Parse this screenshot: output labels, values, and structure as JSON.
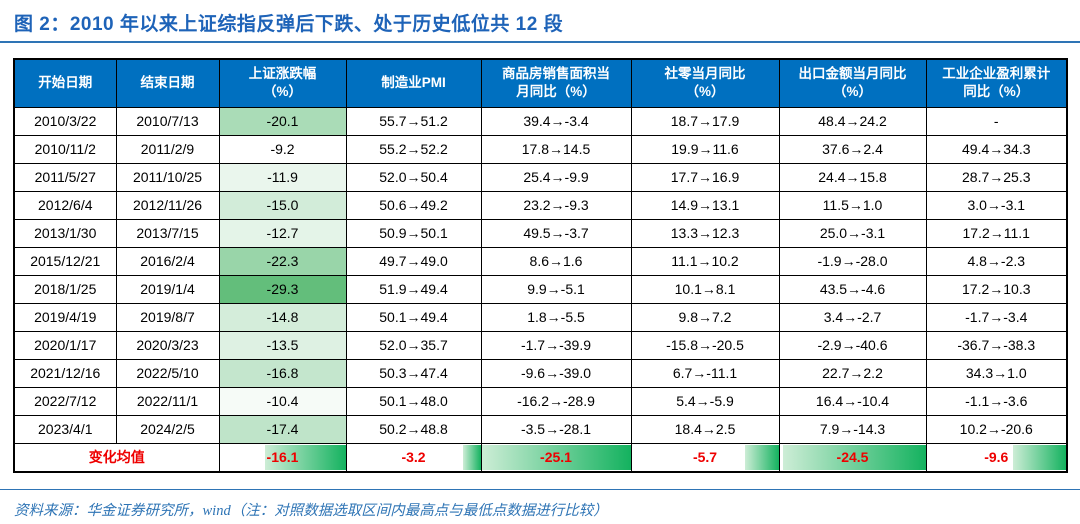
{
  "title": "图 2：2010 年以来上证综指反弹后下跌、处于历史低位共 12 段",
  "source_note": "资料来源：华金证券研究所，wind（注：对照数据选取区间内最高点与最低点数据进行比较）",
  "colors": {
    "header_bg": "#0070C0",
    "header_text": "#FFFFFF",
    "title_text": "#1E63B8",
    "rule_blue": "#2E74B5",
    "scale_green_max": "#63BE7B",
    "scale_white_min": "#FFFFFF",
    "avg_text_red": "#EE0000",
    "bar_gradient_light": "#CDEDD6",
    "bar_gradient_dark": "#14B25F"
  },
  "chart_data": {
    "type": "table",
    "title": "图 2：2010 年以来上证综指反弹后下跌、处于历史低位共 12 段",
    "headers": [
      [
        "开始日期"
      ],
      [
        "结束日期"
      ],
      [
        "上证涨跌幅",
        "（%）"
      ],
      [
        "制造业PMI"
      ],
      [
        "商品房销售面积当",
        "月同比（%）"
      ],
      [
        "社零当月同比",
        "（%）"
      ],
      [
        "出口金额当月同比",
        "（%）"
      ],
      [
        "工业企业盈利累计",
        "同比（%）"
      ]
    ],
    "rows": [
      {
        "start": "2010/3/22",
        "end": "2010/7/13",
        "change": -20.1,
        "pmi": "55.7→51.2",
        "housing": "39.4→-3.4",
        "retail": "18.7→17.9",
        "export": "48.4→24.2",
        "profit": "-"
      },
      {
        "start": "2010/11/2",
        "end": "2011/2/9",
        "change": -9.2,
        "pmi": "55.2→52.2",
        "housing": "17.8→14.5",
        "retail": "19.9→11.6",
        "export": "37.6→2.4",
        "profit": "49.4→34.3"
      },
      {
        "start": "2011/5/27",
        "end": "2011/10/25",
        "change": -11.9,
        "pmi": "52.0→50.4",
        "housing": "25.4→-9.9",
        "retail": "17.7→16.9",
        "export": "24.4→15.8",
        "profit": "28.7→25.3"
      },
      {
        "start": "2012/6/4",
        "end": "2012/11/26",
        "change": -15.0,
        "pmi": "50.6→49.2",
        "housing": "23.2→-9.3",
        "retail": "14.9→13.1",
        "export": "11.5→1.0",
        "profit": "3.0→-3.1"
      },
      {
        "start": "2013/1/30",
        "end": "2013/7/15",
        "change": -12.7,
        "pmi": "50.9→50.1",
        "housing": "49.5→-3.7",
        "retail": "13.3→12.3",
        "export": "25.0→-3.1",
        "profit": "17.2→11.1"
      },
      {
        "start": "2015/12/21",
        "end": "2016/2/4",
        "change": -22.3,
        "pmi": "49.7→49.0",
        "housing": "8.6→1.6",
        "retail": "11.1→10.2",
        "export": "-1.9→-28.0",
        "profit": "4.8→-2.3"
      },
      {
        "start": "2018/1/25",
        "end": "2019/1/4",
        "change": -29.3,
        "pmi": "51.9→49.4",
        "housing": "9.9→-5.1",
        "retail": "10.1→8.1",
        "export": "43.5→-4.6",
        "profit": "17.2→10.3"
      },
      {
        "start": "2019/4/19",
        "end": "2019/8/7",
        "change": -14.8,
        "pmi": "50.1→49.4",
        "housing": "1.8→-5.5",
        "retail": "9.8→7.2",
        "export": "3.4→-2.7",
        "profit": "-1.7→-3.4"
      },
      {
        "start": "2020/1/17",
        "end": "2020/3/23",
        "change": -13.5,
        "pmi": "52.0→35.7",
        "housing": "-1.7→-39.9",
        "retail": "-15.8→-20.5",
        "export": "-2.9→-40.6",
        "profit": "-36.7→-38.3"
      },
      {
        "start": "2021/12/16",
        "end": "2022/5/10",
        "change": -16.8,
        "pmi": "50.3→47.4",
        "housing": "-9.6→-39.0",
        "retail": "6.7→-11.1",
        "export": "22.7→2.2",
        "profit": "34.3→1.0"
      },
      {
        "start": "2022/7/12",
        "end": "2022/11/1",
        "change": -10.4,
        "pmi": "50.1→48.0",
        "housing": "-16.2→-28.9",
        "retail": "5.4→-5.9",
        "export": "16.4→-10.4",
        "profit": "-1.1→-3.6"
      },
      {
        "start": "2023/4/1",
        "end": "2024/2/5",
        "change": -17.4,
        "pmi": "50.2→48.8",
        "housing": "-3.5→-28.1",
        "retail": "18.4→2.5",
        "export": "7.9→-14.3",
        "profit": "10.2→-20.6"
      }
    ],
    "average_row": {
      "label": "变化均值",
      "change": -16.1,
      "pmi": -3.2,
      "housing": -25.1,
      "retail": -5.7,
      "export": -24.5,
      "profit": -9.6
    }
  }
}
